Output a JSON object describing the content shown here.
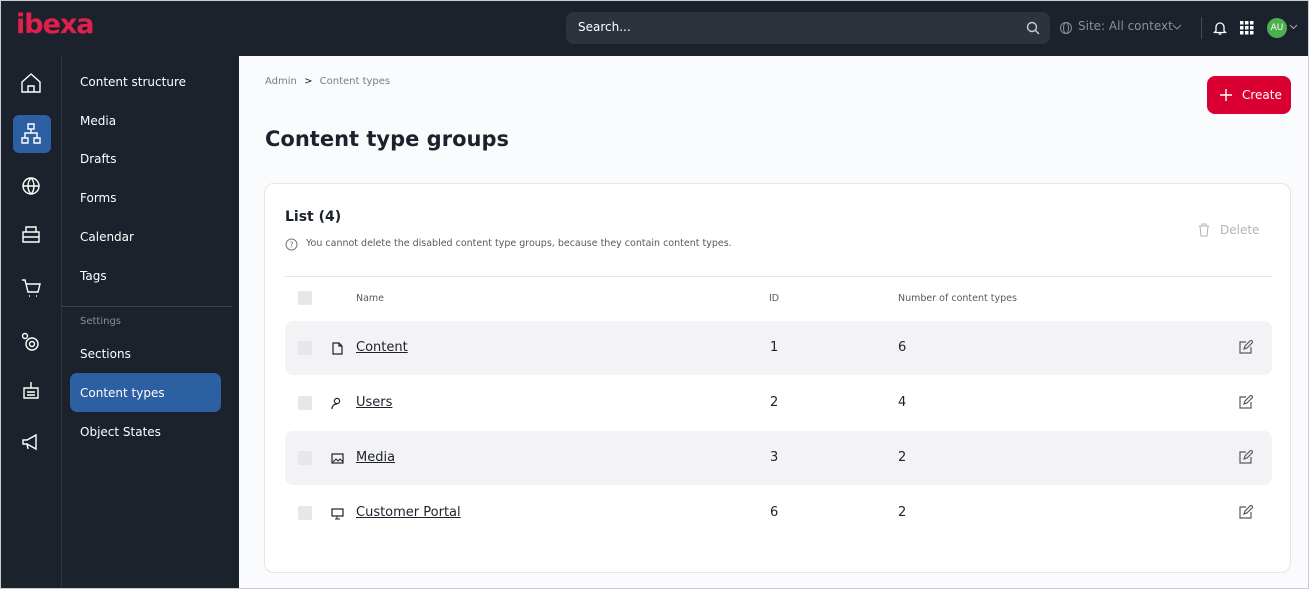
{
  "header": {
    "logo": "ibexa",
    "search_placeholder": "Search...",
    "site": "Site: All context",
    "avatar": "AU"
  },
  "sidebar": {
    "items": [
      "Content structure",
      "Media",
      "Drafts",
      "Forms",
      "Calendar",
      "Tags"
    ],
    "settings_label": "Settings",
    "settings_items": [
      "Sections",
      "Content types",
      "Object States"
    ]
  },
  "breadcrumb": {
    "items": [
      "Admin",
      "Content types"
    ],
    "separator": ">"
  },
  "create_button": "Create",
  "title": "Content type groups",
  "list": {
    "title": "List (4)",
    "note": "You cannot delete the disabled content type groups, because they contain content types.",
    "delete": "Delete",
    "columns": [
      "Name",
      "ID",
      "Number of content types"
    ],
    "rows": [
      {
        "name": "Content",
        "id": "1",
        "count": "6"
      },
      {
        "name": "Users",
        "id": "2",
        "count": "4"
      },
      {
        "name": "Media",
        "id": "3",
        "count": "2"
      },
      {
        "name": "Customer Portal",
        "id": "6",
        "count": "2"
      }
    ]
  }
}
